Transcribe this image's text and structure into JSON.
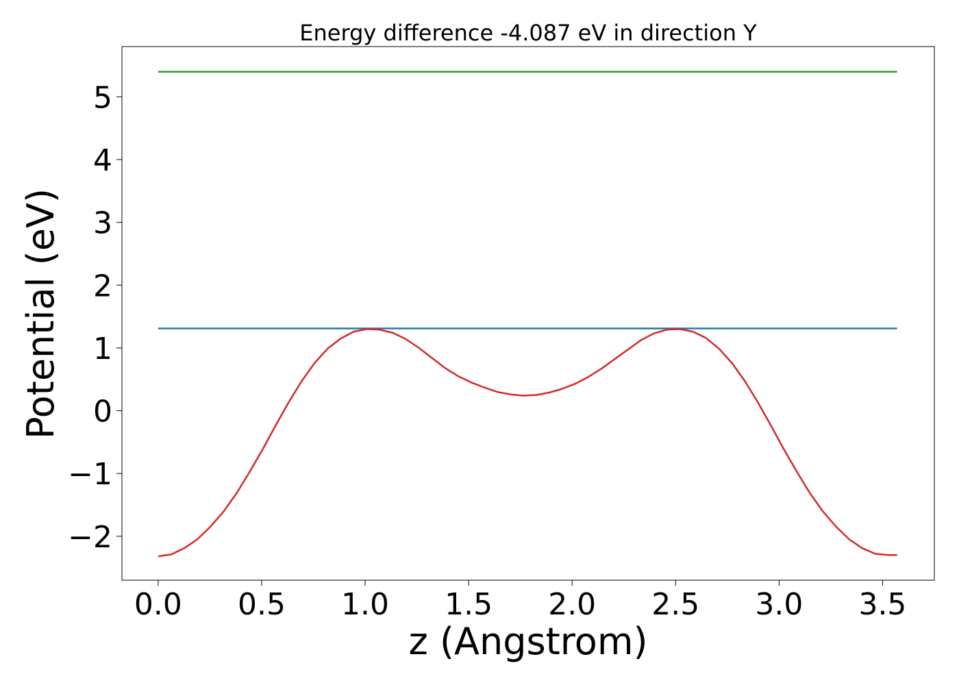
{
  "chart_data": {
    "type": "line",
    "title": "Energy difference -4.087 eV in direction Y",
    "xlabel": "z (Angstrom)",
    "ylabel": "Potential (eV)",
    "xlim": [
      -0.175,
      3.75
    ],
    "ylim": [
      -2.7,
      5.8
    ],
    "xticks": [
      0.0,
      0.5,
      1.0,
      1.5,
      2.0,
      2.5,
      3.0,
      3.5
    ],
    "xtick_labels": [
      "0.0",
      "0.5",
      "1.0",
      "1.5",
      "2.0",
      "2.5",
      "3.0",
      "3.5"
    ],
    "yticks": [
      -2,
      -1,
      0,
      1,
      2,
      3,
      4,
      5
    ],
    "ytick_labels": [
      "−2",
      "−1",
      "0",
      "1",
      "2",
      "3",
      "4",
      "5"
    ],
    "grid": false,
    "series": [
      {
        "color": "#2ca02c",
        "x": [
          0.0,
          3.57
        ],
        "y": [
          5.4,
          5.4
        ]
      },
      {
        "color": "#1f77b4",
        "x": [
          0.0,
          3.57
        ],
        "y": [
          1.31,
          1.31
        ]
      },
      {
        "color": "#d62728",
        "x": [
          0.0,
          0.063,
          0.126,
          0.189,
          0.252,
          0.315,
          0.378,
          0.441,
          0.504,
          0.567,
          0.63,
          0.693,
          0.756,
          0.819,
          0.882,
          0.945,
          1.008,
          1.071,
          1.134,
          1.197,
          1.26,
          1.323,
          1.386,
          1.449,
          1.512,
          1.575,
          1.638,
          1.701,
          1.764,
          1.827,
          1.89,
          1.953,
          2.016,
          2.079,
          2.142,
          2.205,
          2.268,
          2.331,
          2.394,
          2.457,
          2.52,
          2.583,
          2.646,
          2.709,
          2.772,
          2.835,
          2.898,
          2.961,
          3.024,
          3.087,
          3.15,
          3.213,
          3.276,
          3.339,
          3.402,
          3.465,
          3.528,
          3.57
        ],
        "y": [
          -2.32,
          -2.29,
          -2.19,
          -2.05,
          -1.85,
          -1.61,
          -1.32,
          -0.98,
          -0.62,
          -0.24,
          0.13,
          0.47,
          0.76,
          0.99,
          1.15,
          1.26,
          1.3,
          1.29,
          1.24,
          1.14,
          1.0,
          0.84,
          0.68,
          0.55,
          0.45,
          0.37,
          0.3,
          0.26,
          0.24,
          0.25,
          0.29,
          0.35,
          0.43,
          0.54,
          0.67,
          0.82,
          0.97,
          1.12,
          1.23,
          1.29,
          1.3,
          1.26,
          1.16,
          0.99,
          0.76,
          0.47,
          0.13,
          -0.24,
          -0.62,
          -0.98,
          -1.32,
          -1.61,
          -1.85,
          -2.05,
          -2.19,
          -2.28,
          -2.3,
          -2.3
        ]
      }
    ]
  }
}
